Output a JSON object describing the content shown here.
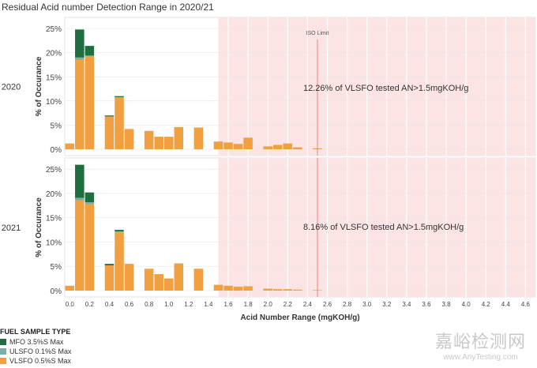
{
  "title": "Residual Acid number Detection Range in 2020/21",
  "colors": {
    "mfo": "#1e6e3f",
    "ulsfo": "#7aaea8",
    "vlsfo": "#f0a040",
    "shade": "#fce4e4",
    "iso_line": "#f08080",
    "grid": "#e6e6e6"
  },
  "legend": {
    "title": "FUEL SAMPLE TYPE",
    "items": [
      {
        "label": "MFO 3.5%S Max",
        "color_key": "mfo"
      },
      {
        "label": "ULSFO 0.1%S Max",
        "color_key": "ulsfo"
      },
      {
        "label": "VLSFO 0.5%S Max",
        "color_key": "vlsfo"
      }
    ]
  },
  "watermark": {
    "cn": "嘉峪检测网",
    "en": "www.AnyTesting.com"
  },
  "chart_data": {
    "type": "bar",
    "stacked": true,
    "title": "Residual Acid number Detection Range in 2020/21",
    "xlabel": "Acid Number Range (mgKOH/g)",
    "ylabel": "% of Occurance",
    "x_ticks": [
      "0.0",
      "0.2",
      "0.4",
      "0.6",
      "0.8",
      "1.0",
      "1.2",
      "1.4",
      "1.6",
      "1.8",
      "2.0",
      "2.2",
      "2.4",
      "2.6",
      "2.8",
      "3.0",
      "3.2",
      "3.4",
      "3.6",
      "3.8",
      "4.0",
      "4.2",
      "4.4",
      "4.6"
    ],
    "y_ticks": [
      "0%",
      "5%",
      "10%",
      "15%",
      "20%",
      "25%"
    ],
    "ylim": [
      0,
      26
    ],
    "xlim": [
      -0.05,
      4.7
    ],
    "bin_width": 0.1,
    "shaded_region_start": 1.5,
    "reference_line": {
      "label": "ISO Limit",
      "x": 2.5
    },
    "panels": [
      {
        "label": "2020",
        "annotation": "12.26% of VLSFO tested AN>1.5mgKOH/g",
        "bins": [
          0.0,
          0.1,
          0.2,
          0.4,
          0.5,
          0.6,
          0.8,
          0.9,
          1.0,
          1.1,
          1.3,
          1.5,
          1.6,
          1.7,
          1.8,
          2.0,
          2.1,
          2.2,
          2.3,
          2.5
        ],
        "series": [
          {
            "name": "VLSFO 0.5%S Max",
            "values": [
              1.2,
              18.5,
              19.2,
              6.8,
              10.8,
              4.2,
              3.8,
              2.6,
              2.6,
              4.6,
              4.5,
              1.6,
              1.4,
              1.1,
              2.4,
              0.6,
              0.9,
              1.2,
              0.4,
              0.2
            ]
          },
          {
            "name": "ULSFO 0.1%S Max",
            "values": [
              0,
              0.5,
              0.2,
              0,
              0,
              0,
              0,
              0,
              0,
              0,
              0,
              0,
              0,
              0,
              0,
              0,
              0,
              0,
              0,
              0
            ]
          },
          {
            "name": "MFO 3.5%S Max",
            "values": [
              0,
              5.8,
              2.0,
              0.2,
              0.2,
              0,
              0,
              0,
              0,
              0,
              0,
              0,
              0,
              0,
              0,
              0,
              0,
              0,
              0,
              0
            ]
          }
        ]
      },
      {
        "label": "2021",
        "annotation": "8.16% of VLSFO tested AN>1.5mgKOH/g",
        "bins": [
          0.0,
          0.1,
          0.2,
          0.4,
          0.5,
          0.6,
          0.8,
          0.9,
          1.0,
          1.1,
          1.3,
          1.5,
          1.6,
          1.7,
          1.8,
          2.0,
          2.1,
          2.2,
          2.3,
          2.5
        ],
        "series": [
          {
            "name": "VLSFO 0.5%S Max",
            "values": [
              1.0,
              18.6,
              17.8,
              5.2,
              12.0,
              5.5,
              4.5,
              3.4,
              2.5,
              5.6,
              4.5,
              1.2,
              1.0,
              0.8,
              0.9,
              0.4,
              0.3,
              0.3,
              0.2,
              0.1
            ]
          },
          {
            "name": "ULSFO 0.1%S Max",
            "values": [
              0,
              0.5,
              0.4,
              0,
              0.2,
              0,
              0,
              0,
              0,
              0,
              0,
              0,
              0,
              0,
              0,
              0,
              0,
              0,
              0,
              0
            ]
          },
          {
            "name": "MFO 3.5%S Max",
            "values": [
              0,
              6.8,
              2.0,
              0.3,
              0.3,
              0,
              0,
              0,
              0,
              0,
              0,
              0,
              0,
              0,
              0,
              0,
              0,
              0,
              0,
              0
            ]
          }
        ]
      }
    ]
  }
}
